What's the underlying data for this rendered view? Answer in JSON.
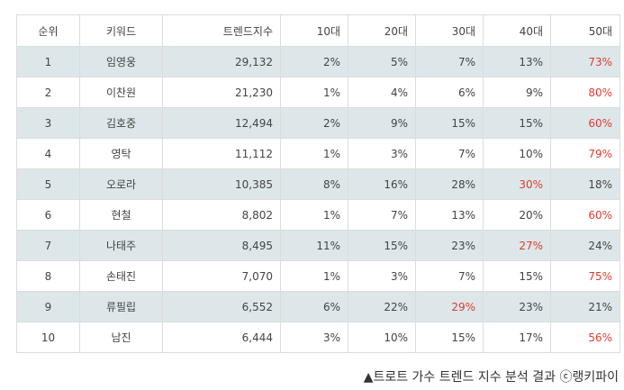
{
  "table": {
    "headers": [
      "순위",
      "키워드",
      "트렌드지수",
      "10대",
      "20대",
      "30대",
      "40대",
      "50대"
    ],
    "rows": [
      {
        "rank": "1",
        "keyword": "임영웅",
        "trend": "29,132",
        "ages": [
          "2%",
          "5%",
          "7%",
          "13%",
          "73%"
        ],
        "highlight": [
          4
        ]
      },
      {
        "rank": "2",
        "keyword": "이찬원",
        "trend": "21,230",
        "ages": [
          "1%",
          "4%",
          "6%",
          "9%",
          "80%"
        ],
        "highlight": [
          4
        ]
      },
      {
        "rank": "3",
        "keyword": "김호중",
        "trend": "12,494",
        "ages": [
          "2%",
          "9%",
          "15%",
          "15%",
          "60%"
        ],
        "highlight": [
          4
        ]
      },
      {
        "rank": "4",
        "keyword": "영탁",
        "trend": "11,112",
        "ages": [
          "1%",
          "3%",
          "7%",
          "10%",
          "79%"
        ],
        "highlight": [
          4
        ]
      },
      {
        "rank": "5",
        "keyword": "오로라",
        "trend": "10,385",
        "ages": [
          "8%",
          "16%",
          "28%",
          "30%",
          "18%"
        ],
        "highlight": [
          3
        ]
      },
      {
        "rank": "6",
        "keyword": "현철",
        "trend": "8,802",
        "ages": [
          "1%",
          "7%",
          "13%",
          "20%",
          "60%"
        ],
        "highlight": [
          4
        ]
      },
      {
        "rank": "7",
        "keyword": "나태주",
        "trend": "8,495",
        "ages": [
          "11%",
          "15%",
          "23%",
          "27%",
          "24%"
        ],
        "highlight": [
          3
        ]
      },
      {
        "rank": "8",
        "keyword": "손태진",
        "trend": "7,070",
        "ages": [
          "1%",
          "3%",
          "7%",
          "15%",
          "75%"
        ],
        "highlight": [
          4
        ]
      },
      {
        "rank": "9",
        "keyword": "류필립",
        "trend": "6,552",
        "ages": [
          "6%",
          "22%",
          "29%",
          "23%",
          "21%"
        ],
        "highlight": [
          2
        ]
      },
      {
        "rank": "10",
        "keyword": "남진",
        "trend": "6,444",
        "ages": [
          "3%",
          "10%",
          "15%",
          "17%",
          "56%"
        ],
        "highlight": [
          4
        ]
      }
    ],
    "shade_color": "#dde7ea",
    "highlight_color": "#e23b2c"
  },
  "caption": "▲트로트 가수 트렌드 지수 분석 결과 ⓒ랭키파이"
}
